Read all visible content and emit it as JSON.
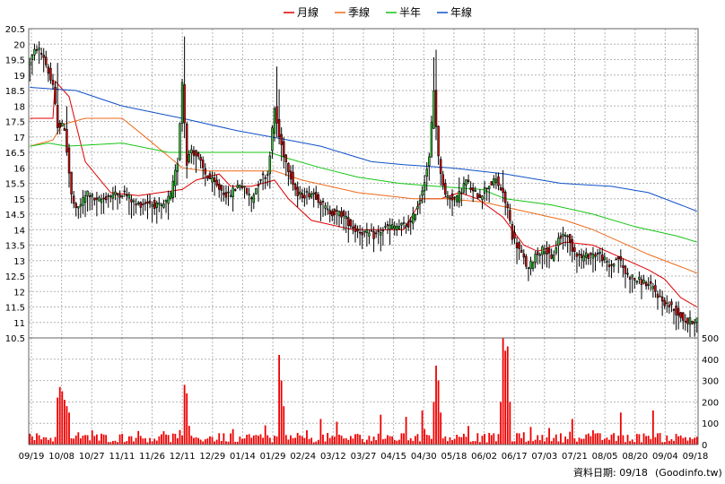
{
  "chart_data": {
    "type": "candlestick",
    "legend": [
      {
        "name": "月線",
        "color": "#dd0000"
      },
      {
        "name": "季線",
        "color": "#ee6a1a"
      },
      {
        "name": "半年",
        "color": "#16c416"
      },
      {
        "name": "年線",
        "color": "#1050c8"
      }
    ],
    "price_axis": {
      "ticks": [
        "10.5",
        "11",
        "11.5",
        "12",
        "12.5",
        "13",
        "13.5",
        "14",
        "14.5",
        "15",
        "15.5",
        "16",
        "16.5",
        "17",
        "17.5",
        "18",
        "18.5",
        "19",
        "19.5",
        "20",
        "20.5"
      ],
      "ylim": [
        10.5,
        20.5
      ]
    },
    "volume_axis": {
      "ticks": [
        "0",
        "100",
        "200",
        "300",
        "400",
        "500"
      ],
      "ylim": [
        0,
        500
      ]
    },
    "x_ticks": [
      "09/19",
      "10/08",
      "10/27",
      "11/11",
      "11/26",
      "12/11",
      "12/29",
      "01/14",
      "01/29",
      "02/24",
      "03/12",
      "03/27",
      "04/15",
      "04/30",
      "05/18",
      "06/02",
      "06/17",
      "07/03",
      "07/21",
      "08/05",
      "08/20",
      "09/04",
      "09/18"
    ],
    "colors": {
      "up": "#33cc33",
      "down": "#dd0000",
      "volume": "#ee0000",
      "grid": "#b4b4b4"
    },
    "grid": true,
    "ma": {
      "月線": [
        [
          0,
          17.6
        ],
        [
          10,
          17.6
        ],
        [
          11,
          18.8
        ],
        [
          17,
          18.3
        ],
        [
          24,
          16.2
        ],
        [
          35,
          15.2
        ],
        [
          47,
          15.1
        ],
        [
          66,
          15.3
        ],
        [
          72,
          15.6
        ],
        [
          82,
          15.8
        ],
        [
          87,
          15.4
        ],
        [
          96,
          15.4
        ],
        [
          106,
          15.6
        ],
        [
          112,
          15.0
        ],
        [
          122,
          14.3
        ],
        [
          140,
          14.0
        ],
        [
          152,
          14.0
        ],
        [
          162,
          14.0
        ],
        [
          170,
          15.0
        ],
        [
          178,
          15.0
        ],
        [
          186,
          15.2
        ],
        [
          194,
          15.0
        ],
        [
          205,
          14.4
        ],
        [
          214,
          13.5
        ],
        [
          220,
          13.3
        ],
        [
          232,
          13.6
        ],
        [
          244,
          13.5
        ],
        [
          256,
          13.1
        ],
        [
          268,
          12.7
        ],
        [
          275,
          12.4
        ],
        [
          282,
          11.8
        ],
        [
          289,
          11.5
        ]
      ],
      "季線": [
        [
          0,
          16.7
        ],
        [
          10,
          16.9
        ],
        [
          14,
          17.4
        ],
        [
          24,
          17.6
        ],
        [
          40,
          17.6
        ],
        [
          50,
          17.0
        ],
        [
          58,
          16.5
        ],
        [
          66,
          16.0
        ],
        [
          76,
          15.9
        ],
        [
          90,
          15.9
        ],
        [
          106,
          15.9
        ],
        [
          118,
          15.6
        ],
        [
          130,
          15.4
        ],
        [
          142,
          15.2
        ],
        [
          154,
          15.1
        ],
        [
          166,
          15.0
        ],
        [
          180,
          15.0
        ],
        [
          196,
          14.9
        ],
        [
          214,
          14.6
        ],
        [
          232,
          14.3
        ],
        [
          244,
          14.0
        ],
        [
          256,
          13.6
        ],
        [
          268,
          13.2
        ],
        [
          282,
          12.8
        ],
        [
          289,
          12.6
        ]
      ],
      "半年": [
        [
          0,
          16.7
        ],
        [
          8,
          16.8
        ],
        [
          16,
          16.7
        ],
        [
          40,
          16.8
        ],
        [
          60,
          16.5
        ],
        [
          72,
          16.5
        ],
        [
          104,
          16.5
        ],
        [
          112,
          16.3
        ],
        [
          126,
          16.0
        ],
        [
          142,
          15.7
        ],
        [
          160,
          15.5
        ],
        [
          176,
          15.4
        ],
        [
          196,
          15.3
        ],
        [
          206,
          15.0
        ],
        [
          226,
          14.8
        ],
        [
          244,
          14.5
        ],
        [
          262,
          14.1
        ],
        [
          280,
          13.8
        ],
        [
          289,
          13.6
        ]
      ],
      "年線": [
        [
          0,
          18.6
        ],
        [
          20,
          18.5
        ],
        [
          40,
          18.0
        ],
        [
          66,
          17.6
        ],
        [
          90,
          17.2
        ],
        [
          112,
          16.9
        ],
        [
          126,
          16.7
        ],
        [
          148,
          16.2
        ],
        [
          162,
          16.1
        ],
        [
          182,
          16.0
        ],
        [
          206,
          15.8
        ],
        [
          230,
          15.5
        ],
        [
          252,
          15.4
        ],
        [
          268,
          15.2
        ],
        [
          282,
          14.8
        ],
        [
          289,
          14.6
        ]
      ]
    }
  },
  "footer": {
    "date_label": "資料日期: 09/18",
    "source": "(Goodinfo.tw)"
  }
}
